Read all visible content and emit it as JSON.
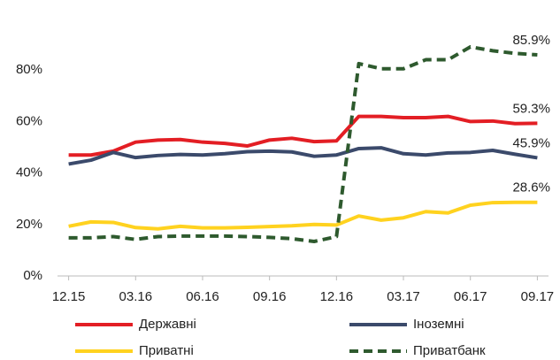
{
  "chart_data": {
    "type": "line",
    "categories": [
      "12.15",
      null,
      null,
      "03.16",
      null,
      null,
      "06.16",
      null,
      null,
      "09.16",
      null,
      null,
      "12.16",
      null,
      null,
      "03.17",
      null,
      null,
      "06.17",
      null,
      null,
      "09.17"
    ],
    "series": [
      {
        "name": "Державні",
        "color": "#e31e24",
        "dash": false,
        "values": [
          47,
          47,
          48.5,
          52,
          52.8,
          53,
          52,
          51.5,
          50.5,
          52.8,
          53.5,
          52.2,
          52.5,
          62,
          62,
          61.5,
          61.5,
          62,
          60,
          60.2,
          59.2,
          59.3
        ],
        "value_labels": [
          null,
          null,
          null,
          null,
          null,
          null,
          null,
          null,
          null,
          null,
          null,
          null,
          null,
          null,
          null,
          null,
          null,
          null,
          null,
          null,
          null,
          "59.3%"
        ]
      },
      {
        "name": "Іноземні",
        "color": "#3b4a6b",
        "dash": false,
        "values": [
          43.5,
          45,
          48,
          46,
          46.8,
          47.2,
          47,
          47.5,
          48.3,
          48.5,
          48.2,
          46.5,
          47,
          49.5,
          49.8,
          47.5,
          47,
          47.8,
          48,
          48.8,
          47.3,
          45.9
        ],
        "value_labels": [
          null,
          null,
          null,
          null,
          null,
          null,
          null,
          null,
          null,
          null,
          null,
          null,
          null,
          null,
          null,
          null,
          null,
          null,
          null,
          null,
          null,
          "45.9%"
        ]
      },
      {
        "name": "Приватні",
        "color": "#ffd21f",
        "dash": false,
        "values": [
          19.3,
          21,
          20.8,
          18.8,
          18.3,
          19.3,
          18.7,
          18.7,
          18.9,
          19.2,
          19.5,
          20,
          19.8,
          23.3,
          21.7,
          22.6,
          25,
          24.5,
          27.5,
          28.5,
          28.6,
          28.6
        ],
        "value_labels": [
          null,
          null,
          null,
          null,
          null,
          null,
          null,
          null,
          null,
          null,
          null,
          null,
          null,
          null,
          null,
          null,
          null,
          null,
          null,
          null,
          null,
          "28.6%"
        ]
      },
      {
        "name": "Приватбанк",
        "color": "#2e5a2e",
        "dash": true,
        "values": [
          14.8,
          14.8,
          15.3,
          14.2,
          15.3,
          15.5,
          15.5,
          15.5,
          15.3,
          15,
          14.5,
          13.4,
          15.3,
          82.5,
          80.5,
          80.5,
          84,
          84,
          89,
          87.5,
          86.5,
          85.9
        ],
        "value_labels": [
          null,
          null,
          null,
          null,
          null,
          null,
          null,
          null,
          null,
          null,
          null,
          null,
          null,
          null,
          null,
          null,
          null,
          null,
          null,
          null,
          null,
          "85.9%"
        ]
      }
    ],
    "ylim": [
      0,
      100
    ],
    "yticks": [
      {
        "value": 0,
        "label": "0%"
      },
      {
        "value": 20,
        "label": "20%"
      },
      {
        "value": 40,
        "label": "40%"
      },
      {
        "value": 60,
        "label": "60%"
      },
      {
        "value": 80,
        "label": "80%"
      }
    ],
    "grid": false
  }
}
